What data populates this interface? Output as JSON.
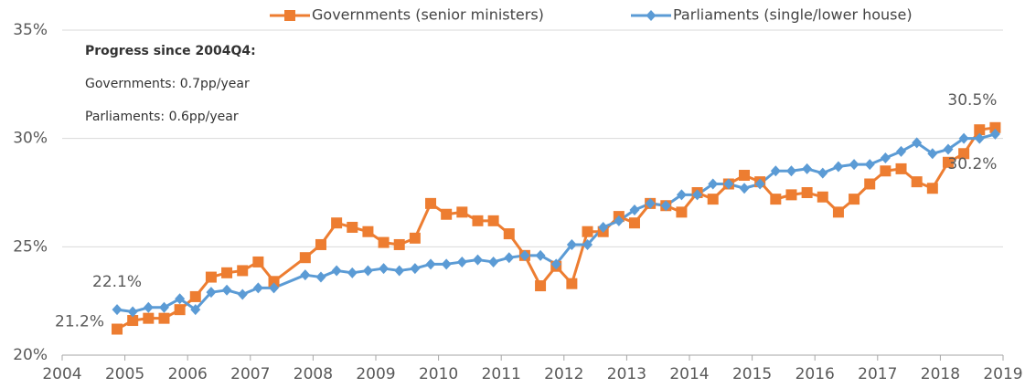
{
  "chart_data": {
    "type": "line",
    "annotations": [
      "Progress since 2004Q4:",
      "Governments: 0.7pp/year",
      "Parliaments: 0.6pp/year"
    ],
    "x": [
      2004.875,
      2005.125,
      2005.375,
      2005.625,
      2005.875,
      2006.125,
      2006.375,
      2006.625,
      2006.875,
      2007.125,
      2007.375,
      2007.875,
      2008.125,
      2008.375,
      2008.625,
      2008.875,
      2009.125,
      2009.375,
      2009.625,
      2009.875,
      2010.125,
      2010.375,
      2010.625,
      2010.875,
      2011.125,
      2011.375,
      2011.625,
      2011.875,
      2012.125,
      2012.375,
      2012.625,
      2012.875,
      2013.125,
      2013.375,
      2013.625,
      2013.875,
      2014.125,
      2014.375,
      2014.625,
      2014.875,
      2015.125,
      2015.375,
      2015.625,
      2015.875,
      2016.125,
      2016.375,
      2016.625,
      2016.875,
      2017.125,
      2017.375,
      2017.625,
      2017.875,
      2018.125,
      2018.375,
      2018.625,
      2018.875
    ],
    "series": [
      {
        "name": "Governments (senior ministers)",
        "color": "#ed7d31",
        "marker": "square",
        "values": [
          21.2,
          21.6,
          21.7,
          21.7,
          22.1,
          22.7,
          23.6,
          23.8,
          23.9,
          24.3,
          23.4,
          24.5,
          25.1,
          26.1,
          25.9,
          25.7,
          25.2,
          25.1,
          25.4,
          27.0,
          26.5,
          26.6,
          26.2,
          26.2,
          25.6,
          24.6,
          23.2,
          24.1,
          23.3,
          25.7,
          25.7,
          26.4,
          26.1,
          27.0,
          26.9,
          26.6,
          27.5,
          27.2,
          27.9,
          28.3,
          28.0,
          27.2,
          27.4,
          27.5,
          27.3,
          26.6,
          27.2,
          27.9,
          28.5,
          28.6,
          28.0,
          27.7,
          28.9,
          29.3,
          30.4,
          30.5
        ],
        "value_labels": [
          "21.2%",
          null,
          null,
          null,
          null,
          null,
          null,
          null,
          null,
          null,
          null,
          null,
          null,
          null,
          null,
          null,
          null,
          null,
          null,
          null,
          null,
          null,
          null,
          null,
          null,
          null,
          null,
          null,
          null,
          null,
          null,
          null,
          null,
          null,
          null,
          null,
          null,
          null,
          null,
          null,
          null,
          null,
          null,
          null,
          null,
          null,
          null,
          null,
          null,
          null,
          null,
          null,
          null,
          null,
          null,
          "30.5%"
        ]
      },
      {
        "name": "Parliaments (single/lower house)",
        "color": "#5b9bd5",
        "marker": "diamond",
        "values": [
          22.1,
          22.0,
          22.2,
          22.2,
          22.6,
          22.1,
          22.9,
          23.0,
          22.8,
          23.1,
          23.1,
          23.7,
          23.6,
          23.9,
          23.8,
          23.9,
          24.0,
          23.9,
          24.0,
          24.2,
          24.2,
          24.3,
          24.4,
          24.3,
          24.5,
          24.6,
          24.6,
          24.2,
          25.1,
          25.1,
          25.9,
          26.2,
          26.7,
          27.0,
          26.9,
          27.4,
          27.4,
          27.9,
          27.9,
          27.7,
          27.9,
          28.5,
          28.5,
          28.6,
          28.4,
          28.7,
          28.8,
          28.8,
          29.1,
          29.4,
          29.8,
          29.3,
          29.5,
          30.0,
          30.0,
          30.2
        ],
        "value_labels": [
          "22.1%",
          null,
          null,
          null,
          null,
          null,
          null,
          null,
          null,
          null,
          null,
          null,
          null,
          null,
          null,
          null,
          null,
          null,
          null,
          null,
          null,
          null,
          null,
          null,
          null,
          null,
          null,
          null,
          null,
          null,
          null,
          null,
          null,
          null,
          null,
          null,
          null,
          null,
          null,
          null,
          null,
          null,
          null,
          null,
          null,
          null,
          null,
          null,
          null,
          null,
          null,
          null,
          null,
          null,
          null,
          "30.2%"
        ]
      }
    ],
    "xlim": [
      2004,
      2019
    ],
    "xticks": [
      2004,
      2005,
      2006,
      2007,
      2008,
      2009,
      2010,
      2011,
      2012,
      2013,
      2014,
      2015,
      2016,
      2017,
      2018,
      2019
    ],
    "ylim": [
      20,
      35
    ],
    "yticks": [
      {
        "value": 20,
        "label": "20%"
      },
      {
        "value": 25,
        "label": "25%"
      },
      {
        "value": 30,
        "label": "30%"
      },
      {
        "value": 35,
        "label": "35%"
      }
    ],
    "grid": true,
    "legend": "top"
  }
}
